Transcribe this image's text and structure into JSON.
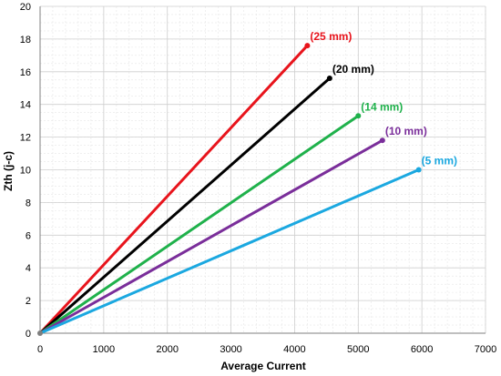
{
  "chart_data": {
    "type": "line",
    "title": "",
    "xlabel": "Average Current",
    "ylabel": "Zth (j-c)",
    "xlim": [
      0,
      7000
    ],
    "ylim": [
      0,
      20
    ],
    "xticks": [
      0,
      1000,
      2000,
      3000,
      4000,
      5000,
      6000,
      7000
    ],
    "yticks": [
      0,
      2,
      4,
      6,
      8,
      10,
      12,
      14,
      16,
      18,
      20
    ],
    "grid": true,
    "legend": "none",
    "series": [
      {
        "name": "(25 mm)",
        "color": "#e8141c",
        "x": [
          0,
          4200
        ],
        "y": [
          0,
          17.6
        ]
      },
      {
        "name": "(20 mm)",
        "color": "#000000",
        "x": [
          0,
          4550
        ],
        "y": [
          0,
          15.6
        ]
      },
      {
        "name": "(14 mm)",
        "color": "#1fb14b",
        "x": [
          0,
          5000
        ],
        "y": [
          0,
          13.3
        ]
      },
      {
        "name": "(10 mm)",
        "color": "#7a2e9a",
        "x": [
          0,
          5380
        ],
        "y": [
          0,
          11.8
        ]
      },
      {
        "name": "(5 mm)",
        "color": "#1ba8e0",
        "x": [
          0,
          5950
        ],
        "y": [
          0,
          10.0
        ]
      }
    ]
  }
}
